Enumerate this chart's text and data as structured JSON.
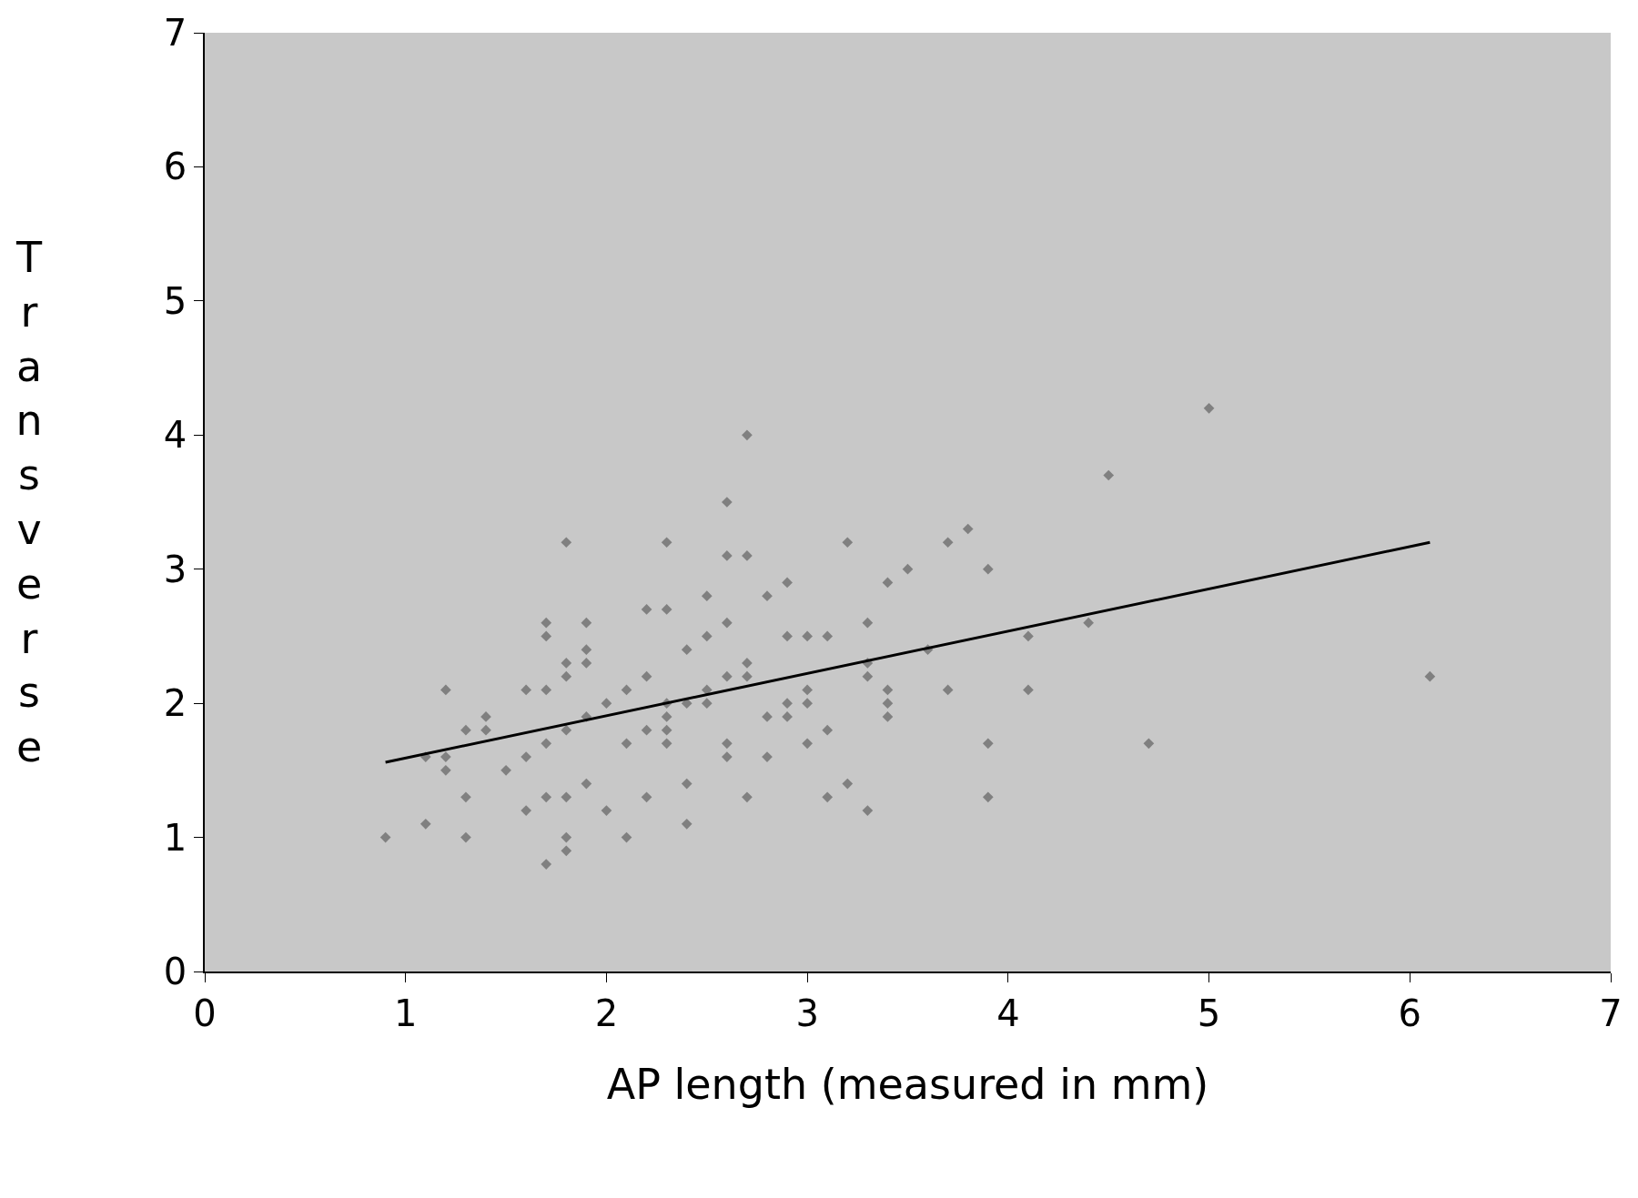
{
  "chart_data": {
    "type": "scatter",
    "xlabel": "AP length (measured in mm)",
    "ylabel": "Transverse",
    "xlim": [
      0,
      7
    ],
    "ylim": [
      0,
      7
    ],
    "xticks": [
      0,
      1,
      2,
      3,
      4,
      5,
      6,
      7
    ],
    "yticks": [
      0,
      1,
      2,
      3,
      4,
      5,
      6,
      7
    ],
    "grid": false,
    "marker": "diamond",
    "series": [
      {
        "color": "#808080",
        "x": [
          0.9,
          1.1,
          1.1,
          1.2,
          1.2,
          1.2,
          1.3,
          1.3,
          1.3,
          1.4,
          1.4,
          1.5,
          1.6,
          1.6,
          1.6,
          1.7,
          1.7,
          1.7,
          1.7,
          1.7,
          1.7,
          1.8,
          1.8,
          1.8,
          1.8,
          1.8,
          1.8,
          1.8,
          1.9,
          1.9,
          1.9,
          1.9,
          1.9,
          2.0,
          2.0,
          2.1,
          2.1,
          2.1,
          2.2,
          2.2,
          2.2,
          2.2,
          2.3,
          2.3,
          2.3,
          2.3,
          2.3,
          2.3,
          2.4,
          2.4,
          2.4,
          2.4,
          2.5,
          2.5,
          2.5,
          2.5,
          2.6,
          2.6,
          2.6,
          2.6,
          2.6,
          2.6,
          2.7,
          2.7,
          2.7,
          2.7,
          2.7,
          2.8,
          2.8,
          2.8,
          2.9,
          2.9,
          2.9,
          2.9,
          3.0,
          3.0,
          3.0,
          3.0,
          3.1,
          3.1,
          3.1,
          3.2,
          3.2,
          3.3,
          3.3,
          3.3,
          3.3,
          3.4,
          3.4,
          3.4,
          3.4,
          3.5,
          3.6,
          3.7,
          3.7,
          3.8,
          3.9,
          3.9,
          3.9,
          4.1,
          4.1,
          4.4,
          4.5,
          4.7,
          5.0,
          6.1
        ],
        "values": [
          1.0,
          1.1,
          1.6,
          2.1,
          1.6,
          1.5,
          1.8,
          1.3,
          1.0,
          1.9,
          1.8,
          1.5,
          2.1,
          1.6,
          1.2,
          2.6,
          2.5,
          2.1,
          1.7,
          1.3,
          0.8,
          3.2,
          2.3,
          2.2,
          1.8,
          1.3,
          1.0,
          0.9,
          2.6,
          2.4,
          2.3,
          1.9,
          1.4,
          2.0,
          1.2,
          2.1,
          1.7,
          1.0,
          2.7,
          2.2,
          1.8,
          1.3,
          3.2,
          2.7,
          2.0,
          1.9,
          1.8,
          1.7,
          2.4,
          2.0,
          1.4,
          1.1,
          2.8,
          2.5,
          2.1,
          2.0,
          3.5,
          3.1,
          2.6,
          2.2,
          1.7,
          1.6,
          4.0,
          3.1,
          2.3,
          2.2,
          1.3,
          2.8,
          1.9,
          1.6,
          2.9,
          2.5,
          2.0,
          1.9,
          2.5,
          2.1,
          2.0,
          1.7,
          2.5,
          1.8,
          1.3,
          3.2,
          1.4,
          2.6,
          2.3,
          2.2,
          1.2,
          2.9,
          2.1,
          2.0,
          1.9,
          3.0,
          2.4,
          3.2,
          2.1,
          3.3,
          3.0,
          1.7,
          1.3,
          2.5,
          2.1,
          2.6,
          3.7,
          1.7,
          4.2,
          2.2
        ]
      },
      {
        "type": "line",
        "color": "#000000",
        "x": [
          0.9,
          6.1
        ],
        "values": [
          1.56,
          3.2
        ],
        "line_style": "solid",
        "marker": "none"
      }
    ]
  }
}
